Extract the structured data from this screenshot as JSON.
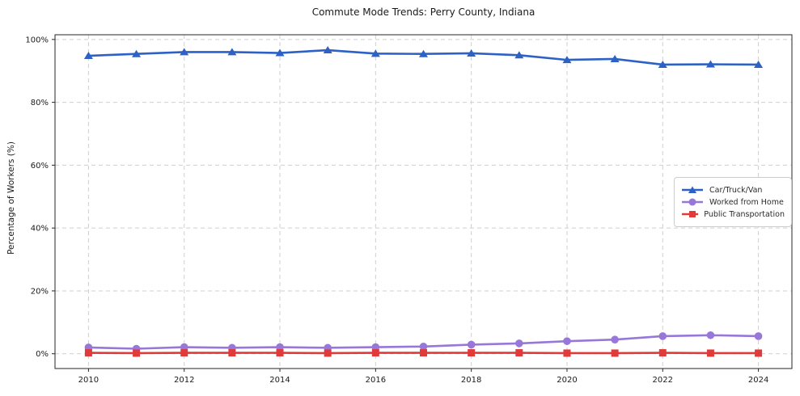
{
  "title": "Commute Mode Trends: Perry County, Indiana",
  "chart_data": {
    "type": "line",
    "title": "Commute Mode Trends: Perry County, Indiana",
    "xlabel": "",
    "ylabel": "Percentage of Workers (%)",
    "x": [
      2010,
      2011,
      2012,
      2013,
      2014,
      2015,
      2016,
      2017,
      2018,
      2019,
      2020,
      2021,
      2022,
      2023,
      2024
    ],
    "series": [
      {
        "name": "Car/Truck/Van",
        "color": "#2d61c6",
        "marker": "triangle",
        "values": [
          94.8,
          95.4,
          96.0,
          96.0,
          95.7,
          96.6,
          95.5,
          95.4,
          95.6,
          95.0,
          93.5,
          93.8,
          92.0,
          92.1,
          92.0
        ]
      },
      {
        "name": "Worked from Home",
        "color": "#9777d8",
        "marker": "circle",
        "values": [
          2.0,
          1.6,
          2.1,
          1.9,
          2.1,
          1.9,
          2.1,
          2.3,
          2.9,
          3.3,
          4.0,
          4.5,
          5.6,
          5.9,
          5.6
        ]
      },
      {
        "name": "Public Transportation",
        "color": "#e03a3a",
        "marker": "square",
        "values": [
          0.3,
          0.2,
          0.3,
          0.3,
          0.3,
          0.2,
          0.3,
          0.3,
          0.3,
          0.3,
          0.2,
          0.2,
          0.3,
          0.2,
          0.2
        ]
      }
    ],
    "xticks": [
      2010,
      2012,
      2014,
      2016,
      2018,
      2020,
      2022,
      2024
    ],
    "yticks": [
      0,
      20,
      40,
      60,
      80,
      100
    ],
    "ytick_suffix": "%",
    "xlim": [
      2009.3,
      2024.7
    ],
    "ylim": [
      -4.7,
      101.5
    ],
    "grid": true,
    "grid_style": "dashed",
    "legend_position": "center-right"
  },
  "colors": {
    "grid": "#cfcfcf",
    "axis": "#262626",
    "tick_label": "#1a1a1a",
    "background": "#ffffff"
  }
}
